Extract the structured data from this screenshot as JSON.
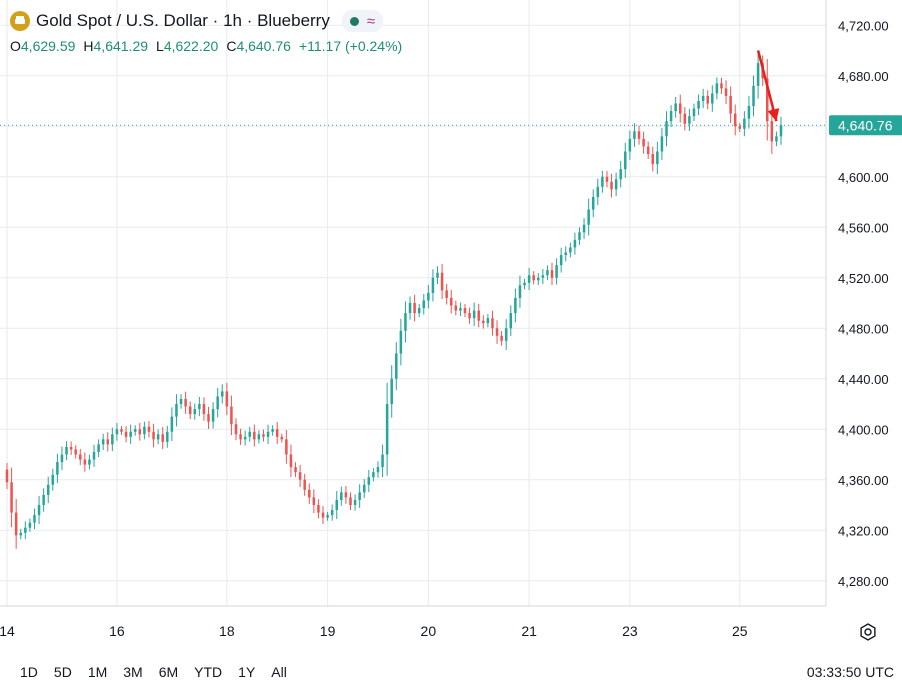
{
  "legend": {
    "symbol_icon": "gold-bars-icon",
    "title": "Gold Spot / U.S. Dollar · 1h · Blueberry",
    "status_icons": [
      "market-open-dot-icon",
      "wave-icon"
    ]
  },
  "ohlc": {
    "o_label": "O",
    "o_value": "4,629.59",
    "h_label": "H",
    "h_value": "4,641.29",
    "l_label": "L",
    "l_value": "4,622.20",
    "c_label": "C",
    "c_value": "4,640.76",
    "change": "+11.17 (+0.24%)"
  },
  "timeframes": [
    "1D",
    "5D",
    "1M",
    "3M",
    "6M",
    "YTD",
    "1Y",
    "All"
  ],
  "clock": "03:33:50 UTC",
  "colors": {
    "up": "#26a69a",
    "down": "#ef5350",
    "price_tag": "#26a69a",
    "arrow": "#e8201c",
    "grid": "#e8eaee"
  },
  "chart_data": {
    "type": "candlestick",
    "instrument": "Gold Spot / U.S. Dollar",
    "interval": "1h",
    "ylim": [
      4260,
      4740
    ],
    "y_ticks": [
      {
        "value": 4280,
        "label": "4,280.00"
      },
      {
        "value": 4320,
        "label": "4,320.00"
      },
      {
        "value": 4360,
        "label": "4,360.00"
      },
      {
        "value": 4400,
        "label": "4,400.00"
      },
      {
        "value": 4440,
        "label": "4,440.00"
      },
      {
        "value": 4480,
        "label": "4,480.00"
      },
      {
        "value": 4520,
        "label": "4,520.00"
      },
      {
        "value": 4560,
        "label": "4,560.00"
      },
      {
        "value": 4600,
        "label": "4,600.00"
      },
      {
        "value": 4640,
        "label": "4,640.00"
      },
      {
        "value": 4680,
        "label": "4,680.00"
      },
      {
        "value": 4720,
        "label": "4,720.00"
      }
    ],
    "x_ticks": [
      {
        "bar": 0,
        "label": "14"
      },
      {
        "bar": 24,
        "label": "16"
      },
      {
        "bar": 48,
        "label": "18"
      },
      {
        "bar": 70,
        "label": "19"
      },
      {
        "bar": 92,
        "label": "20"
      },
      {
        "bar": 114,
        "label": "21"
      },
      {
        "bar": 136,
        "label": "23"
      },
      {
        "bar": 160,
        "label": "25"
      }
    ],
    "last_price": {
      "value": 4640.76,
      "label": "4,640.76"
    },
    "arrow": {
      "from_bar": 164,
      "from_value": 4700,
      "to_bar": 168,
      "to_value": 4644
    },
    "closes": [
      4358,
      4334,
      4316,
      4318,
      4322,
      4326,
      4332,
      4340,
      4348,
      4356,
      4364,
      4374,
      4380,
      4386,
      4384,
      4380,
      4376,
      4372,
      4376,
      4382,
      4388,
      4392,
      4388,
      4396,
      4400,
      4398,
      4394,
      4398,
      4400,
      4396,
      4402,
      4398,
      4392,
      4396,
      4390,
      4398,
      4410,
      4420,
      4424,
      4418,
      4412,
      4416,
      4420,
      4412,
      4406,
      4416,
      4426,
      4430,
      4418,
      4404,
      4396,
      4392,
      4394,
      4398,
      4392,
      4396,
      4394,
      4398,
      4400,
      4394,
      4392,
      4380,
      4370,
      4366,
      4360,
      4352,
      4346,
      4340,
      4334,
      4330,
      4332,
      4336,
      4344,
      4350,
      4346,
      4340,
      4344,
      4350,
      4356,
      4362,
      4366,
      4370,
      4380,
      4420,
      4440,
      4460,
      4478,
      4492,
      4500,
      4492,
      4496,
      4502,
      4508,
      4520,
      4524,
      4510,
      4504,
      4498,
      4494,
      4496,
      4492,
      4488,
      4494,
      4486,
      4484,
      4488,
      4480,
      4474,
      4470,
      4480,
      4492,
      4504,
      4514,
      4516,
      4522,
      4518,
      4520,
      4522,
      4526,
      4520,
      4530,
      4538,
      4540,
      4544,
      4550,
      4556,
      4562,
      4574,
      4584,
      4592,
      4600,
      4596,
      4590,
      4598,
      4606,
      4620,
      4630,
      4636,
      4630,
      4624,
      4618,
      4610,
      4620,
      4632,
      4644,
      4652,
      4658,
      4650,
      4642,
      4648,
      4654,
      4660,
      4664,
      4658,
      4666,
      4674,
      4670,
      4664,
      4650,
      4640,
      4638,
      4646,
      4656,
      4672,
      4690,
      4678,
      4644,
      4628,
      4632,
      4640.76
    ]
  }
}
